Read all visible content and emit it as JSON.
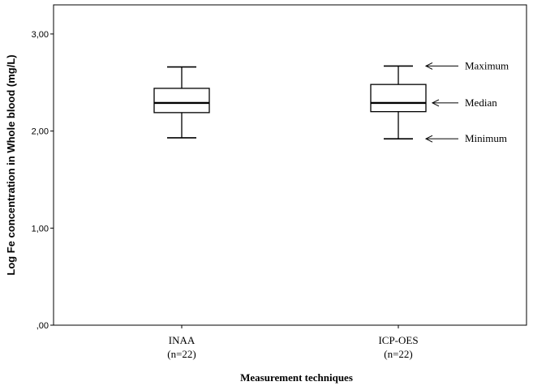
{
  "chart_data": {
    "type": "box",
    "title": "",
    "xlabel": "Measurement techniques",
    "ylabel": "Log Fe concentration in Whole blood (mg/L)",
    "ylim": [
      0,
      3.3
    ],
    "y_ticks": [
      0,
      1,
      2,
      3
    ],
    "y_tick_labels": [
      ",00",
      "1,00",
      "2,00",
      "3,00"
    ],
    "categories": [
      {
        "name": "INAA",
        "n_label": "(n=22)"
      },
      {
        "name": "ICP-OES",
        "n_label": "(n=22)"
      }
    ],
    "boxes": [
      {
        "min": 1.93,
        "q1": 2.19,
        "median": 2.29,
        "q3": 2.44,
        "max": 2.66
      },
      {
        "min": 1.92,
        "q1": 2.2,
        "median": 2.29,
        "q3": 2.48,
        "max": 2.67
      }
    ],
    "annotations": [
      {
        "text": "Maximum",
        "target": "max",
        "category_index": 1
      },
      {
        "text": "Median",
        "target": "median",
        "category_index": 1
      },
      {
        "text": "Minimum",
        "target": "min",
        "category_index": 1
      }
    ],
    "grid": false,
    "colors": {
      "box_fill": "#ffffff",
      "stroke": "#000000"
    }
  }
}
